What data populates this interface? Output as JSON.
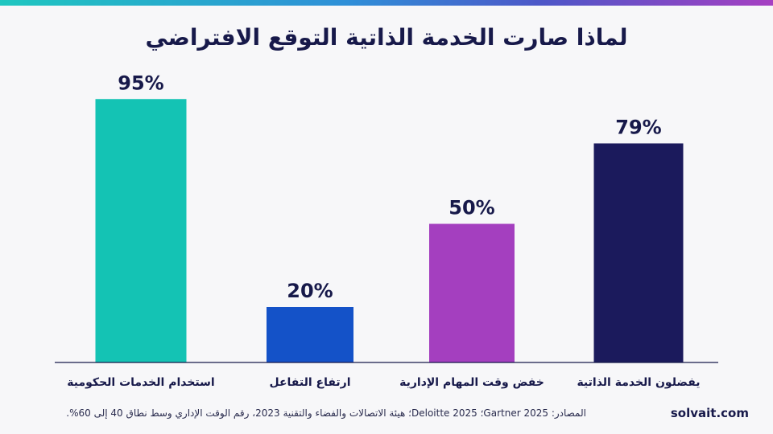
{
  "header": {
    "title": "لماذا صارت الخدمة الذاتية التوقع الافتراضي"
  },
  "colors": {
    "accent_gradient": [
      "#1fc7c0",
      "#2f8fd8",
      "#4d57c8",
      "#a63fc2"
    ],
    "axis": "#17194a",
    "value_label": "#17194a"
  },
  "chart_data": {
    "type": "bar",
    "title": "لماذا صارت الخدمة الذاتية التوقع الافتراضي",
    "xlabel": "",
    "ylabel": "",
    "ylim": [
      0,
      100
    ],
    "grid": false,
    "legend": "none",
    "categories": [
      "استخدام الخدمات الحكومية",
      "ارتفاع التفاعل",
      "خفض وقت المهام الإدارية",
      "يفضلون الخدمة الذاتية"
    ],
    "values": [
      95,
      20,
      50,
      79
    ],
    "value_labels": [
      "95%",
      "20%",
      "50%",
      "79%"
    ],
    "bar_colors": [
      "#14c3b4",
      "#1452c8",
      "#a43fbf",
      "#1b1a5c"
    ]
  },
  "footer": {
    "sources": "المصادر: Gartner 2025؛ Deloitte 2025؛ هيئة الاتصالات والفضاء والتقنية 2023، رقم الوقت الإداري وسط نطاق 40 إلى 60%.",
    "brand": "solvait.com"
  }
}
